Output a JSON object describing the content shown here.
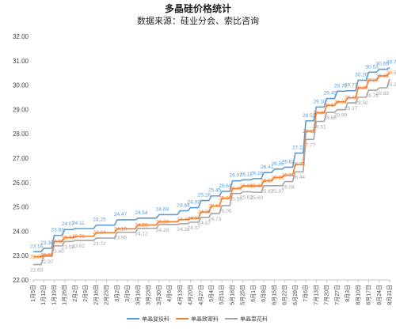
{
  "chart_data": {
    "type": "line",
    "title": "多晶硅价格统计",
    "subtitle": "数据来源：硅业分会、索比咨询",
    "ylim": [
      22.0,
      32.0
    ],
    "yticks": [
      "22.00",
      "23.00",
      "24.00",
      "25.00",
      "26.00",
      "27.00",
      "28.00",
      "29.00",
      "30.00",
      "31.00",
      "32.00"
    ],
    "categories": [
      "1月5日",
      "1月12日",
      "1月19日",
      "1月26日",
      "2月2日",
      "2月9日",
      "2月16日",
      "2月23日",
      "3月2日",
      "3月9日",
      "3月16日",
      "3月23日",
      "3月30日",
      "4月6日",
      "4月13日",
      "4月20日",
      "4月27日",
      "5月4日",
      "5月11日",
      "5月18日",
      "5月25日",
      "6月1日",
      "6月8日",
      "6月15日",
      "6月22日",
      "6月29日",
      "7月6日",
      "7月13日",
      "7月20日",
      "7月27日",
      "8月3日",
      "8月10日",
      "8月17日",
      "8月24日",
      "8月31日"
    ],
    "legend_position": "bottom",
    "grid": false,
    "series": [
      {
        "name": "单晶复投料",
        "color": "#5b9bd5",
        "values": [
          23.16,
          23.3,
          23.83,
          24.07,
          24.11,
          24.11,
          24.25,
          24.25,
          24.47,
          24.47,
          24.54,
          24.54,
          24.68,
          24.68,
          24.84,
          24.97,
          25.26,
          25.45,
          25.64,
          26.07,
          26.11,
          26.16,
          26.41,
          26.55,
          26.63,
          27.21,
          28.53,
          29.1,
          29.45,
          29.75,
          29.77,
          30.2,
          30.53,
          30.65,
          30.72
        ],
        "labels": [
          "23.16",
          "23.30",
          "23.83",
          "24.07",
          "24.11",
          "",
          "24.25",
          "",
          "24.47",
          "",
          "24.54",
          "",
          "24.68",
          "",
          "24.84",
          "24.97",
          "25.26",
          "25.45",
          "25.64",
          "26.07",
          "26.11",
          "26.16",
          "26.41",
          "26.55",
          "26.63",
          "27.21",
          "28.53",
          "29.10",
          "29.45",
          "29.75",
          "29.77",
          "30.20",
          "30.53",
          "30.65",
          "30.72"
        ]
      },
      {
        "name": "单晶致密料",
        "color": "#ed7d31",
        "values": [
          22.95,
          23.03,
          23.58,
          23.74,
          23.79,
          23.79,
          23.94,
          23.94,
          24.1,
          24.1,
          24.26,
          24.26,
          24.39,
          24.39,
          24.48,
          24.54,
          24.79,
          25.04,
          25.36,
          25.75,
          25.86,
          25.86,
          26.07,
          26.21,
          26.31,
          26.75,
          28.11,
          28.86,
          29.17,
          29.31,
          29.48,
          29.89,
          30.2,
          30.38,
          30.51
        ],
        "labels": [
          "22.95",
          "23.03",
          "23.58",
          "23.74",
          "23.79",
          "",
          "23.94",
          "",
          "24.10",
          "",
          "24.26",
          "",
          "24.39",
          "",
          "24.48",
          "24.54",
          "24.79",
          "25.04",
          "25.36",
          "25.75",
          "25.86",
          "25.86",
          "26.07",
          "26.21",
          "26.31",
          "26.75",
          "28.11",
          "28.86",
          "29.17",
          "29.31",
          "29.48",
          "29.89",
          "30.20",
          "30.38",
          "30.51"
        ]
      },
      {
        "name": "单晶菜花料",
        "color": "#a5a5a5",
        "values": [
          22.63,
          22.97,
          23.4,
          23.58,
          23.62,
          23.62,
          23.72,
          23.72,
          23.96,
          23.96,
          24.12,
          24.12,
          24.28,
          24.28,
          24.31,
          24.37,
          24.57,
          24.73,
          25.05,
          25.55,
          25.62,
          25.6,
          25.87,
          25.87,
          26.04,
          26.44,
          27.77,
          28.51,
          28.88,
          28.99,
          29.27,
          29.5,
          29.79,
          29.89,
          30.25
        ],
        "labels": [
          "22.63",
          "22.97",
          "23.40",
          "23.58",
          "23.62",
          "",
          "23.72",
          "",
          "23.96",
          "",
          "24.12",
          "",
          "24.28",
          "",
          "24.31",
          "24.37",
          "24.57",
          "24.73",
          "25.05",
          "25.55",
          "25.62",
          "25.60",
          "25.87",
          "25.87",
          "26.04",
          "26.44",
          "27.77",
          "28.51",
          "28.88",
          "28.99",
          "29.27",
          "29.50",
          "29.79",
          "29.89",
          "30.25"
        ]
      }
    ]
  }
}
